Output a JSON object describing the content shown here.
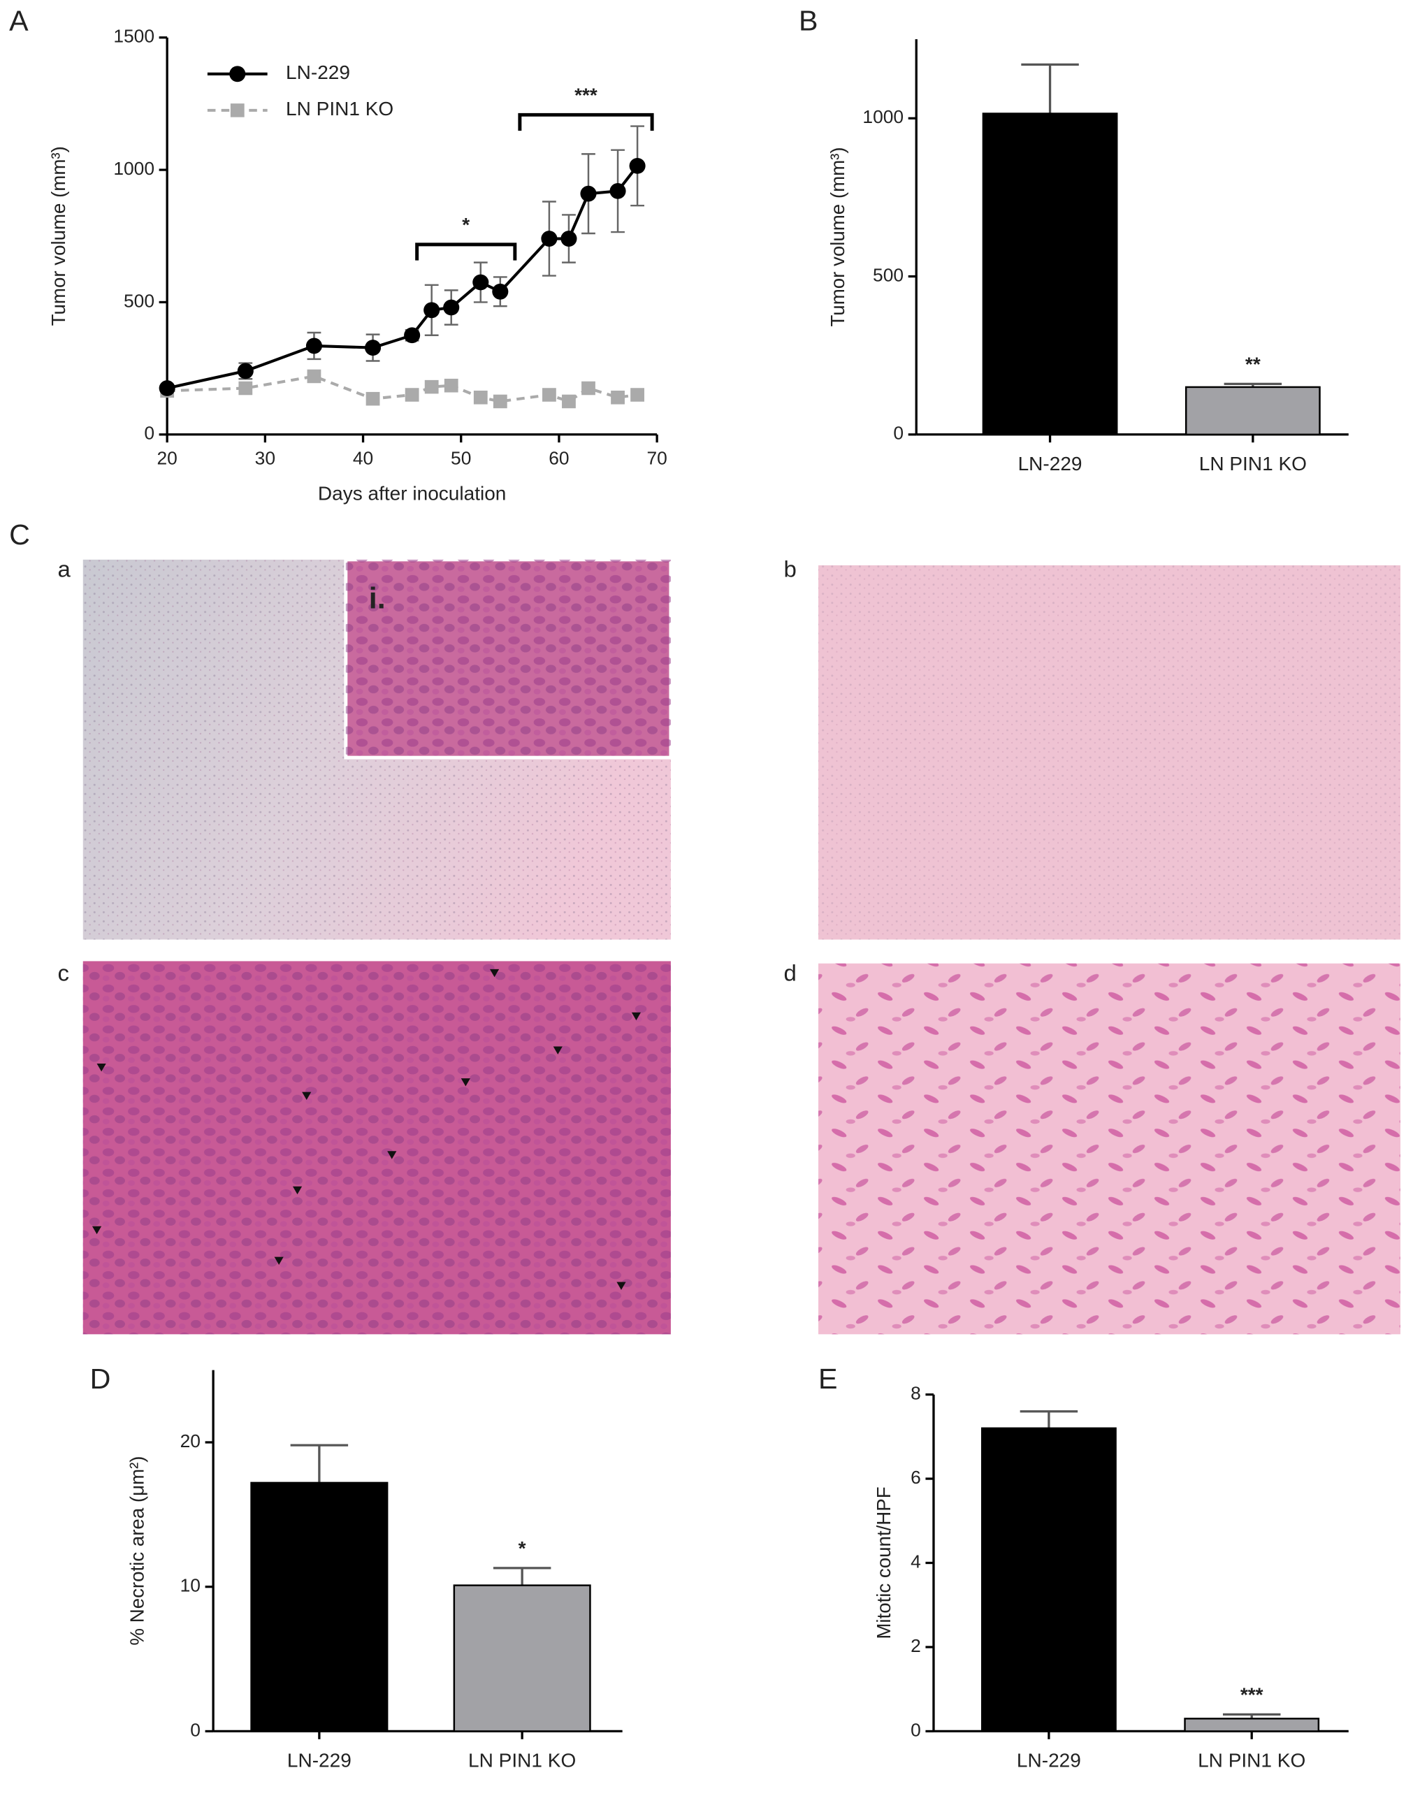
{
  "figure": {
    "panels": [
      "A",
      "B",
      "C",
      "D",
      "E"
    ],
    "subpanels": [
      "a",
      "b",
      "c",
      "d"
    ],
    "inset_label": "i."
  },
  "chart_data": [
    {
      "type": "line",
      "xlabel": "Days after inoculation",
      "ylabel": "Tumor volume (mm³)",
      "x": [
        20,
        28,
        35,
        41,
        45,
        47,
        49,
        52,
        54,
        59,
        61,
        63,
        66,
        68
      ],
      "series": [
        {
          "name": "LN-229",
          "color": "#000000",
          "marker": "circle",
          "dashed": false,
          "values": [
            175,
            240,
            335,
            328,
            375,
            470,
            480,
            575,
            540,
            740,
            740,
            910,
            920,
            1015
          ],
          "errors": [
            null,
            30,
            50,
            50,
            20,
            95,
            65,
            75,
            55,
            140,
            90,
            150,
            155,
            150
          ]
        },
        {
          "name": "LN PIN1 KO",
          "color": "#aaaaaa",
          "marker": "square",
          "dashed": true,
          "values": [
            165,
            175,
            220,
            135,
            150,
            180,
            185,
            140,
            125,
            150,
            125,
            175,
            140,
            150
          ],
          "errors": [
            null,
            null,
            null,
            null,
            null,
            null,
            null,
            null,
            null,
            null,
            null,
            null,
            null,
            null
          ]
        }
      ],
      "xlim": [
        20,
        70
      ],
      "xticks": [
        20,
        30,
        40,
        50,
        60,
        70
      ],
      "ylim": [
        0,
        1500
      ],
      "yticks": [
        0,
        500,
        1000,
        1500
      ],
      "annotations": [
        {
          "text": "*",
          "x": [
            45.5,
            55.5
          ],
          "y": 718
        },
        {
          "text": "***",
          "x": [
            56,
            69.5
          ],
          "y": 1208
        }
      ]
    },
    {
      "type": "bar",
      "ylabel": "Tumor volume (mm³)",
      "categories": [
        "LN-229",
        "LN PIN1 KO"
      ],
      "values": [
        1015,
        150
      ],
      "errors": [
        155,
        10
      ],
      "colors": [
        "#000000",
        "#a2a2a6"
      ],
      "ylim": [
        0,
        1250
      ],
      "yticks": [
        0,
        500,
        1000
      ],
      "significance": {
        "category": "LN PIN1 KO",
        "label": "**"
      }
    },
    {
      "type": "bar",
      "ylabel": "% Necrotic area (μm²)",
      "categories": [
        "LN-229",
        "LN PIN1 KO"
      ],
      "values": [
        17.2,
        10.1
      ],
      "errors": [
        2.6,
        1.2
      ],
      "colors": [
        "#000000",
        "#a2a2a6"
      ],
      "ylim": [
        0,
        25
      ],
      "yticks": [
        0,
        10,
        20
      ],
      "significance": {
        "category": "LN PIN1 KO",
        "label": "*"
      }
    },
    {
      "type": "bar",
      "ylabel": "Mitotic count/HPF",
      "categories": [
        "LN-229",
        "LN PIN1 KO"
      ],
      "values": [
        7.2,
        0.3
      ],
      "errors": [
        0.4,
        0.1
      ],
      "colors": [
        "#000000",
        "#a2a2a6"
      ],
      "ylim": [
        0,
        8
      ],
      "yticks": [
        0,
        2,
        4,
        6,
        8
      ],
      "significance": {
        "category": "LN PIN1 KO",
        "label": "***"
      }
    }
  ]
}
